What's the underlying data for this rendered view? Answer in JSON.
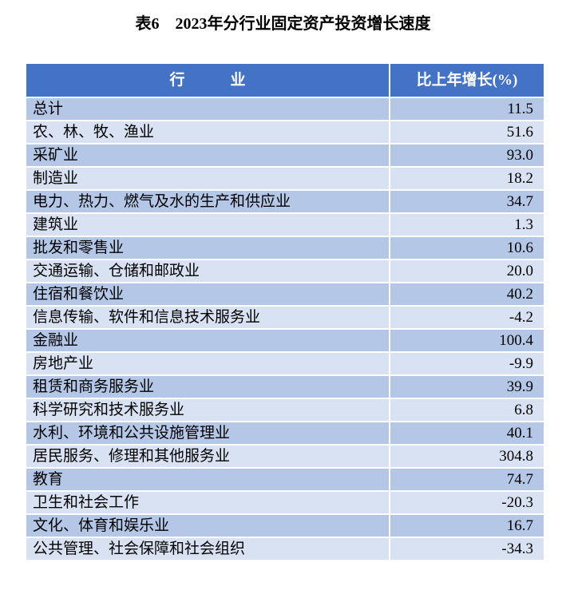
{
  "title": "表6　2023年分行业固定资产投资增长速度",
  "table": {
    "header": {
      "industry": "行　　　业",
      "growth": "比上年增长(%)"
    },
    "rows": [
      {
        "industry": "总计",
        "value": "11.5"
      },
      {
        "industry": "农、林、牧、渔业",
        "value": "51.6"
      },
      {
        "industry": "采矿业",
        "value": "93.0"
      },
      {
        "industry": "制造业",
        "value": "18.2"
      },
      {
        "industry": "电力、热力、燃气及水的生产和供应业",
        "value": "34.7"
      },
      {
        "industry": "建筑业",
        "value": "1.3"
      },
      {
        "industry": "批发和零售业",
        "value": "10.6"
      },
      {
        "industry": "交通运输、仓储和邮政业",
        "value": "20.0"
      },
      {
        "industry": "住宿和餐饮业",
        "value": "40.2"
      },
      {
        "industry": "信息传输、软件和信息技术服务业",
        "value": "-4.2"
      },
      {
        "industry": "金融业",
        "value": "100.4"
      },
      {
        "industry": "房地产业",
        "value": "-9.9"
      },
      {
        "industry": "租赁和商务服务业",
        "value": "39.9"
      },
      {
        "industry": "科学研究和技术服务业",
        "value": "6.8"
      },
      {
        "industry": "水利、环境和公共设施管理业",
        "value": "40.1"
      },
      {
        "industry": "居民服务、修理和其他服务业",
        "value": "304.8"
      },
      {
        "industry": "教育",
        "value": "74.7"
      },
      {
        "industry": "卫生和社会工作",
        "value": "-20.3"
      },
      {
        "industry": "文化、体育和娱乐业",
        "value": "16.7"
      },
      {
        "industry": "公共管理、社会保障和社会组织",
        "value": "-34.3"
      }
    ],
    "colors": {
      "header_bg": "#4472C4",
      "header_text": "#FFFFFF",
      "row_odd_bg": "#B4C7E7",
      "row_even_bg": "#D9E2F3",
      "text": "#000000"
    }
  }
}
